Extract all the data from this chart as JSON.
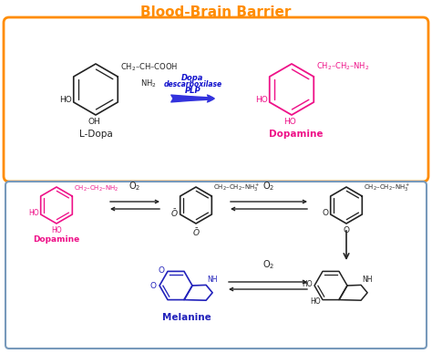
{
  "title": "Blood-Brain Barrier",
  "title_color": "#FF8C00",
  "title_fontsize": 11,
  "bg_color": "#ffffff",
  "box1_color": "#FF8C00",
  "box2_color": "#7799BB",
  "ldopa_label": "L-Dopa",
  "dopamine_label": "Dopamine",
  "melanine_label": "Melanine",
  "enzyme_line1": "Dopa",
  "enzyme_line2": "descarboxilase",
  "enzyme_line3": "PLP",
  "enzyme_color": "#1111CC",
  "pink_color": "#EE1188",
  "dark_color": "#222222",
  "blue_color": "#2222BB",
  "arrow_blue": "#3333DD"
}
